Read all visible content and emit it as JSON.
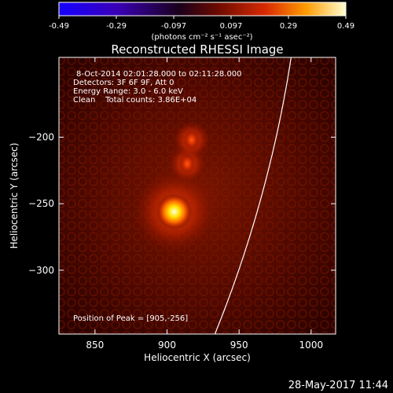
{
  "colorbar": {
    "ticks": [
      "-0.49",
      "-0.29",
      "-0.097",
      "0.097",
      "0.29",
      "0.49"
    ],
    "units": "(photons cm⁻² s⁻¹ asec⁻²)"
  },
  "chart_data": {
    "type": "heatmap",
    "title": "Reconstructed RHESSI Image",
    "xlabel": "Heliocentric X (arcsec)",
    "ylabel": "Heliocentric Y (arcsec)",
    "xlim": [
      825,
      1017
    ],
    "ylim": [
      -348,
      -140
    ],
    "x_ticks": [
      850,
      900,
      950,
      1000
    ],
    "y_ticks": [
      -200,
      -250,
      -300
    ],
    "info_lines": [
      "8-Oct-2014 02:01:28.000 to 02:11:28.000",
      "Detectors: 3F 6F 9F, Att 0",
      "Energy Range: 3.0 - 6.0 keV",
      "Clean    Total counts: 3.86E+04"
    ],
    "peak_label": "Position of Peak = [905,-256]",
    "sources": [
      {
        "x": 905,
        "y": -256,
        "rel": 1.0
      },
      {
        "x": 914,
        "y": -220,
        "rel": 0.55
      },
      {
        "x": 917,
        "y": -202,
        "rel": 0.4
      }
    ],
    "colorbar_range": [
      -0.49,
      0.49
    ],
    "limb": true
  },
  "timestamp": "28-May-2017 11:44"
}
